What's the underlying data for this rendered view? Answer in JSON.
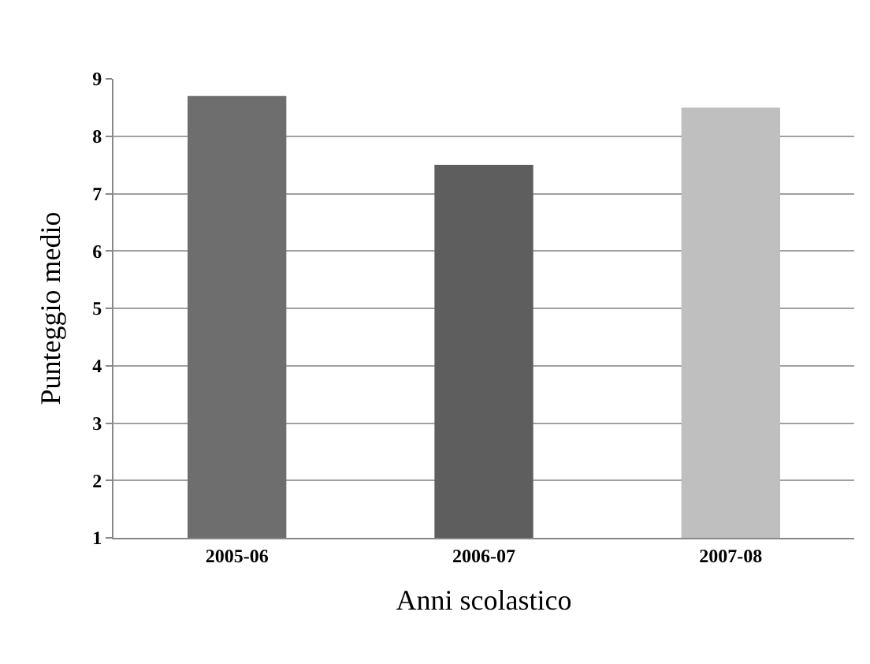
{
  "chart_data": {
    "type": "bar",
    "xlabel": "Anni scolastico",
    "ylabel": "Punteggio medio",
    "categories": [
      "2005-06",
      "2006-07",
      "2007-08"
    ],
    "values": [
      8.7,
      7.5,
      8.5
    ],
    "colors": [
      "#6e6e6e",
      "#5e5e5e",
      "#bfbfbf"
    ],
    "ylim": [
      1,
      9
    ],
    "yticks": [
      1,
      2,
      3,
      4,
      5,
      6,
      7,
      8,
      9
    ],
    "grid": "y"
  }
}
